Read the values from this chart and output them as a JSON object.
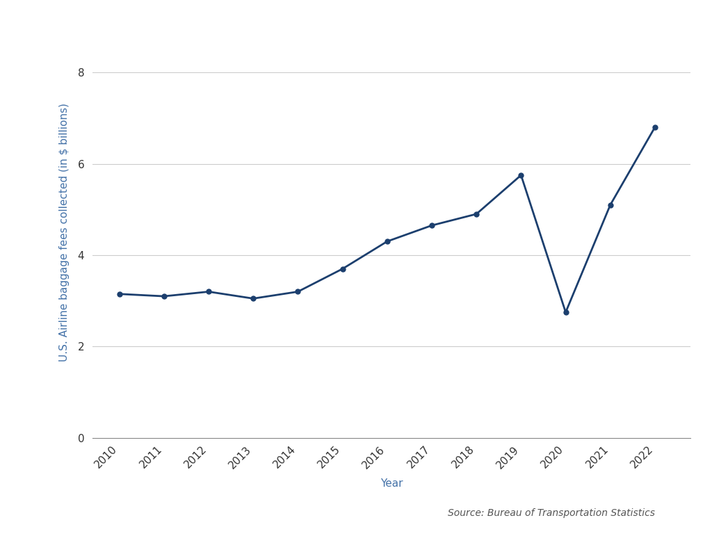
{
  "years": [
    2010,
    2011,
    2012,
    2013,
    2014,
    2015,
    2016,
    2017,
    2018,
    2019,
    2020,
    2021,
    2022
  ],
  "values": [
    3.15,
    3.1,
    3.2,
    3.05,
    3.2,
    3.7,
    4.3,
    4.65,
    4.9,
    5.75,
    2.75,
    5.1,
    6.8
  ],
  "line_color": "#1c3f6e",
  "marker_color": "#1c3f6e",
  "ylabel": "U.S. Airline baggage fees collected (in $ billions)",
  "xlabel": "Year",
  "source": "Source: Bureau of Transportation Statistics",
  "ylim": [
    0,
    9
  ],
  "yticks": [
    0,
    2,
    4,
    6,
    8
  ],
  "background_color": "#ffffff",
  "grid_color": "#cccccc",
  "line_width": 2.0,
  "marker_size": 5,
  "label_color": "#4472a8",
  "tick_label_color": "#333333",
  "source_color": "#555555"
}
